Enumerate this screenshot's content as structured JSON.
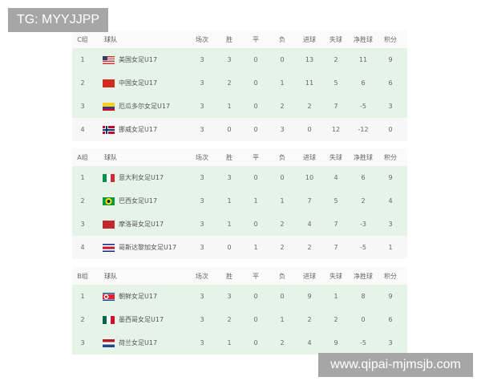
{
  "watermark_top": "TG: MYYJJPP",
  "watermark_bottom": "www.qipai-mjmsjb.com",
  "columns": [
    "球队",
    "场次",
    "胜",
    "平",
    "负",
    "进球",
    "失球",
    "净胜球",
    "积分"
  ],
  "groups": [
    {
      "label": "C组",
      "rows": [
        {
          "rank": "1",
          "flag": "usa-flag-icon",
          "team": "美国女足U17",
          "p": "3",
          "w": "3",
          "d": "0",
          "l": "0",
          "gf": "13",
          "ga": "2",
          "gd": "11",
          "pts": "9"
        },
        {
          "rank": "2",
          "flag": "china-flag-icon",
          "team": "中国女足U17",
          "p": "3",
          "w": "2",
          "d": "0",
          "l": "1",
          "gf": "11",
          "ga": "5",
          "gd": "6",
          "pts": "6"
        },
        {
          "rank": "3",
          "flag": "ecuador-flag-icon",
          "team": "厄瓜多尔女足U17",
          "p": "3",
          "w": "1",
          "d": "0",
          "l": "2",
          "gf": "2",
          "ga": "7",
          "gd": "-5",
          "pts": "3"
        },
        {
          "rank": "4",
          "flag": "norway-flag-icon",
          "team": "挪威女足U17",
          "p": "3",
          "w": "0",
          "d": "0",
          "l": "3",
          "gf": "0",
          "ga": "12",
          "gd": "-12",
          "pts": "0"
        }
      ]
    },
    {
      "label": "A组",
      "rows": [
        {
          "rank": "1",
          "flag": "italy-flag-icon",
          "team": "意大利女足U17",
          "p": "3",
          "w": "3",
          "d": "0",
          "l": "0",
          "gf": "10",
          "ga": "4",
          "gd": "6",
          "pts": "9"
        },
        {
          "rank": "2",
          "flag": "brazil-flag-icon",
          "team": "巴西女足U17",
          "p": "3",
          "w": "1",
          "d": "1",
          "l": "1",
          "gf": "7",
          "ga": "5",
          "gd": "2",
          "pts": "4"
        },
        {
          "rank": "3",
          "flag": "morocco-flag-icon",
          "team": "摩洛哥女足U17",
          "p": "3",
          "w": "1",
          "d": "0",
          "l": "2",
          "gf": "4",
          "ga": "7",
          "gd": "-3",
          "pts": "3"
        },
        {
          "rank": "4",
          "flag": "costa-rica-flag-icon",
          "team": "哥斯达黎加女足U17",
          "p": "3",
          "w": "0",
          "d": "1",
          "l": "2",
          "gf": "2",
          "ga": "7",
          "gd": "-5",
          "pts": "1"
        }
      ]
    },
    {
      "label": "B组",
      "rows": [
        {
          "rank": "1",
          "flag": "north-korea-flag-icon",
          "team": "朝鲜女足U17",
          "p": "3",
          "w": "3",
          "d": "0",
          "l": "0",
          "gf": "9",
          "ga": "1",
          "gd": "8",
          "pts": "9"
        },
        {
          "rank": "2",
          "flag": "mexico-flag-icon",
          "team": "墨西哥女足U17",
          "p": "3",
          "w": "2",
          "d": "0",
          "l": "1",
          "gf": "2",
          "ga": "2",
          "gd": "0",
          "pts": "6"
        },
        {
          "rank": "3",
          "flag": "netherlands-flag-icon",
          "team": "荷兰女足U17",
          "p": "3",
          "w": "1",
          "d": "0",
          "l": "2",
          "gf": "4",
          "ga": "9",
          "gd": "-5",
          "pts": "3"
        }
      ]
    }
  ]
}
